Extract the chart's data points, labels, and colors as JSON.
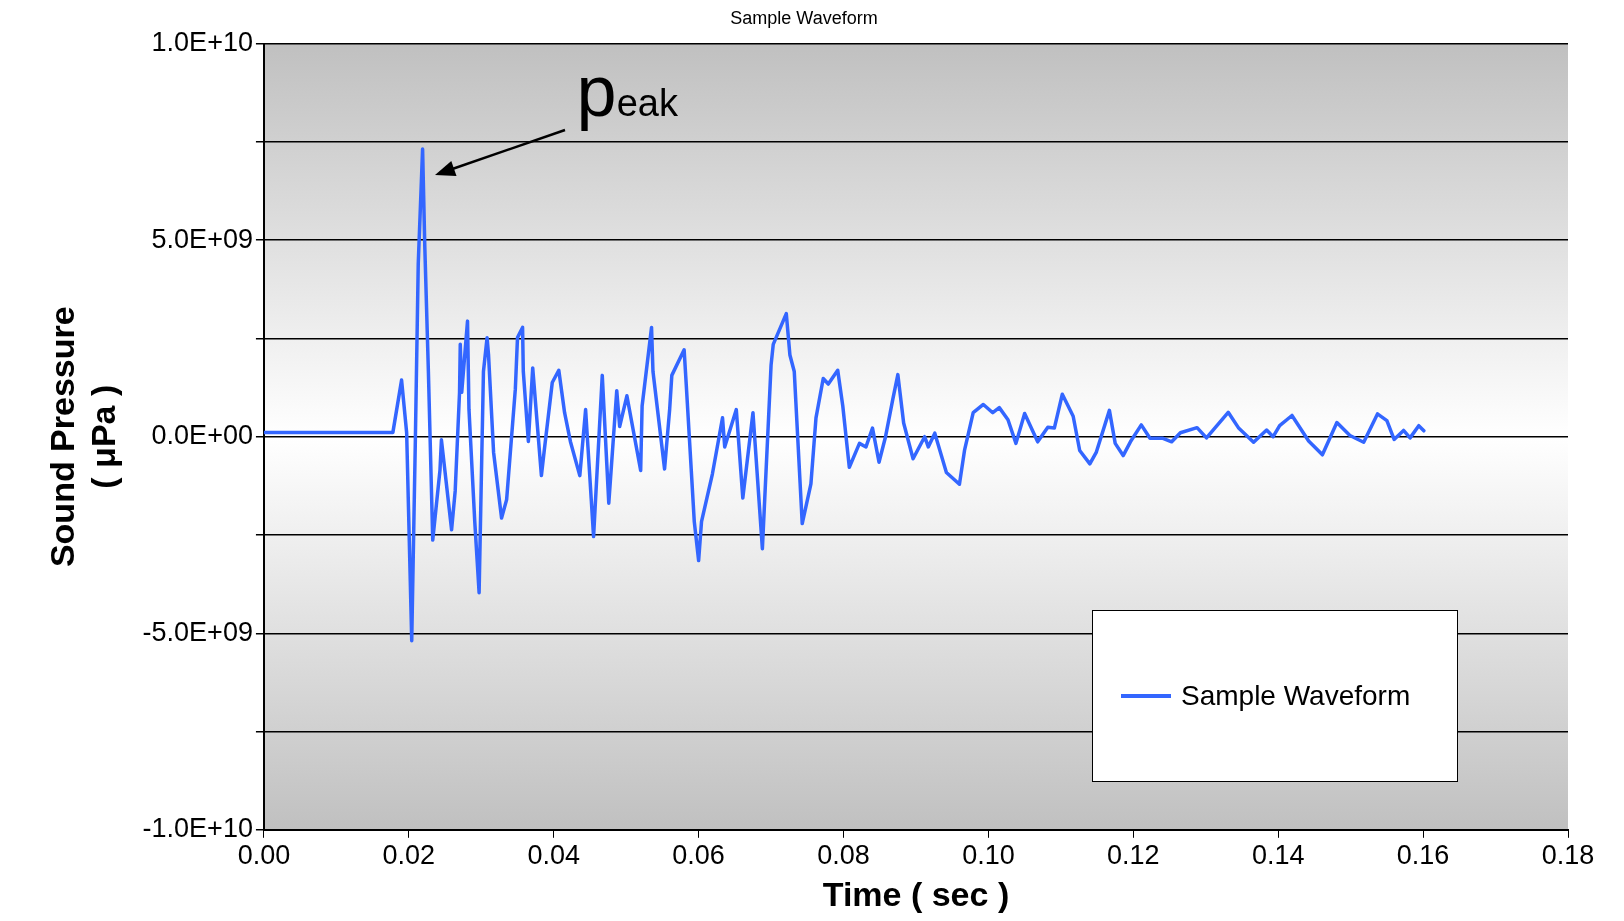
{
  "chart_data": {
    "type": "line",
    "title": "Sample Waveform",
    "xlabel": "Time ( sec )",
    "ylabel": "Sound Pressure\n( μPa )",
    "xlim": [
      0,
      0.18
    ],
    "xticks": [
      {
        "value": 0,
        "label": "0.00"
      },
      {
        "value": 0.02,
        "label": "0.02"
      },
      {
        "value": 0.04,
        "label": "0.04"
      },
      {
        "value": 0.06,
        "label": "0.06"
      },
      {
        "value": 0.08,
        "label": "0.08"
      },
      {
        "value": 0.1,
        "label": "0.10"
      },
      {
        "value": 0.12,
        "label": "0.12"
      },
      {
        "value": 0.14,
        "label": "0.14"
      },
      {
        "value": 0.16,
        "label": "0.16"
      },
      {
        "value": 0.18,
        "label": "0.18"
      }
    ],
    "ylim": [
      -10000000000.0,
      10000000000.0
    ],
    "yticks": [
      {
        "value": -10000000000.0,
        "label": "-1.0E+10"
      },
      {
        "value": -7500000000.0,
        "label": null
      },
      {
        "value": -5000000000.0,
        "label": "-5.0E+09"
      },
      {
        "value": -2500000000.0,
        "label": null
      },
      {
        "value": 0,
        "label": "0.0E+00"
      },
      {
        "value": 2500000000.0,
        "label": null
      },
      {
        "value": 5000000000.0,
        "label": "5.0E+09"
      },
      {
        "value": 7500000000.0,
        "label": null
      },
      {
        "value": 10000000000.0,
        "label": "1.0E+10"
      }
    ],
    "grid": "y",
    "legend": "bottom right",
    "marker": "none",
    "line_style": "solid",
    "annotations": [
      {
        "text": "peak",
        "x": 0.0219,
        "y": 7300000000.0
      }
    ],
    "series": [
      {
        "name": "Sample Waveform",
        "color": "#3366ff",
        "x": [
          0,
          0.0178,
          0.019,
          0.0197,
          0.0204,
          0.0209,
          0.0213,
          0.0219,
          0.0222,
          0.0227,
          0.0233,
          0.0243,
          0.0245,
          0.0259,
          0.0264,
          0.027,
          0.0271,
          0.0273,
          0.0281,
          0.0283,
          0.0291,
          0.0297,
          0.0303,
          0.0308,
          0.031,
          0.0317,
          0.0328,
          0.0335,
          0.0347,
          0.035,
          0.0357,
          0.0358,
          0.0365,
          0.0371,
          0.0383,
          0.0387,
          0.0398,
          0.0407,
          0.0415,
          0.0423,
          0.0436,
          0.0444,
          0.0455,
          0.0467,
          0.0476,
          0.0487,
          0.0491,
          0.0501,
          0.052,
          0.0522,
          0.0535,
          0.0537,
          0.0553,
          0.056,
          0.0563,
          0.058,
          0.0583,
          0.0594,
          0.06,
          0.0604,
          0.0619,
          0.0633,
          0.0636,
          0.0652,
          0.0661,
          0.0675,
          0.0688,
          0.07,
          0.0703,
          0.0721,
          0.0726,
          0.0732,
          0.0743,
          0.0755,
          0.0762,
          0.0772,
          0.0779,
          0.0792,
          0.0799,
          0.0808,
          0.0822,
          0.0831,
          0.084,
          0.0849,
          0.0858,
          0.0868,
          0.0875,
          0.0883,
          0.0896,
          0.0912,
          0.0917,
          0.0926,
          0.0942,
          0.096,
          0.0967,
          0.0979,
          0.0993,
          0.1006,
          0.1015,
          0.1027,
          0.1038,
          0.105,
          0.1068,
          0.1082,
          0.1091,
          0.1102,
          0.1117,
          0.1126,
          0.114,
          0.1149,
          0.1167,
          0.1175,
          0.1186,
          0.1196,
          0.1211,
          0.1223,
          0.1241,
          0.1253,
          0.1265,
          0.1288,
          0.1301,
          0.1331,
          0.1345,
          0.1366,
          0.1384,
          0.1393,
          0.1402,
          0.1419,
          0.1442,
          0.1461,
          0.1481,
          0.1499,
          0.1518,
          0.1537,
          0.155,
          0.156,
          0.1573,
          0.1582,
          0.1594,
          0.1601
        ],
        "values": [
          110000000.0,
          110000000.0,
          1440000000.0,
          100000000.0,
          -5190000000.0,
          -90000000.0,
          4400000000.0,
          7320000000.0,
          4860000000.0,
          1660000000.0,
          -2630000000.0,
          -850000000.0,
          -80000000.0,
          -2370000000.0,
          -1380000000.0,
          1130000000.0,
          2350000000.0,
          1130000000.0,
          2940000000.0,
          700000000.0,
          -2160000000.0,
          -3970000000.0,
          1660000000.0,
          2520000000.0,
          2090000000.0,
          -400000000.0,
          -2070000000.0,
          -1600000000.0,
          1210000000.0,
          2520000000.0,
          2780000000.0,
          1660000000.0,
          -120000000.0,
          1750000000.0,
          -990000000.0,
          -340000000.0,
          1380000000.0,
          1690000000.0,
          610000000.0,
          -120000000.0,
          -990000000.0,
          690000000.0,
          -2540000000.0,
          1560000000.0,
          -1690000000.0,
          1170000000.0,
          260000000.0,
          1040000000.0,
          -860000000.0,
          780000000.0,
          2780000000.0,
          1660000000.0,
          -820000000.0,
          690000000.0,
          1560000000.0,
          2210000000.0,
          1300000000.0,
          -2160000000.0,
          -3150000000.0,
          -2160000000.0,
          -950000000.0,
          480000000.0,
          -260000000.0,
          690000000.0,
          -1560000000.0,
          610000000.0,
          -2850000000.0,
          1820000000.0,
          2350000000.0,
          3130000000.0,
          2080000000.0,
          1660000000.0,
          -2210000000.0,
          -1200000000.0,
          480000000.0,
          1480000000.0,
          1340000000.0,
          1690000000.0,
          780000000.0,
          -780000000.0,
          -170000000.0,
          -260000000.0,
          220000000.0,
          -650000000.0,
          0,
          950000000.0,
          1580000000.0,
          350000000.0,
          -560000000.0,
          0,
          -260000000.0,
          90000000.0,
          -910000000.0,
          -1210000000.0,
          -350000000.0,
          610000000.0,
          820000000.0,
          610000000.0,
          740000000.0,
          430000000.0,
          -170000000.0,
          590000000.0,
          -130000000.0,
          240000000.0,
          220000000.0,
          1080000000.0,
          520000000.0,
          -350000000.0,
          -690000000.0,
          -390000000.0,
          670000000.0,
          -170000000.0,
          -480000000.0,
          -130000000.0,
          300000000.0,
          -40000000.0,
          -40000000.0,
          -130000000.0,
          100000000.0,
          230000000.0,
          -30000000.0,
          620000000.0,
          230000000.0,
          -140000000.0,
          170000000.0,
          0,
          280000000.0,
          540000000.0,
          -110000000.0,
          -460000000.0,
          360000000.0,
          30000000.0,
          -140000000.0,
          580000000.0,
          410000000.0,
          -70000000.0,
          160000000.0,
          -30000000.0,
          280000000.0,
          150000000.0
        ]
      }
    ]
  }
}
